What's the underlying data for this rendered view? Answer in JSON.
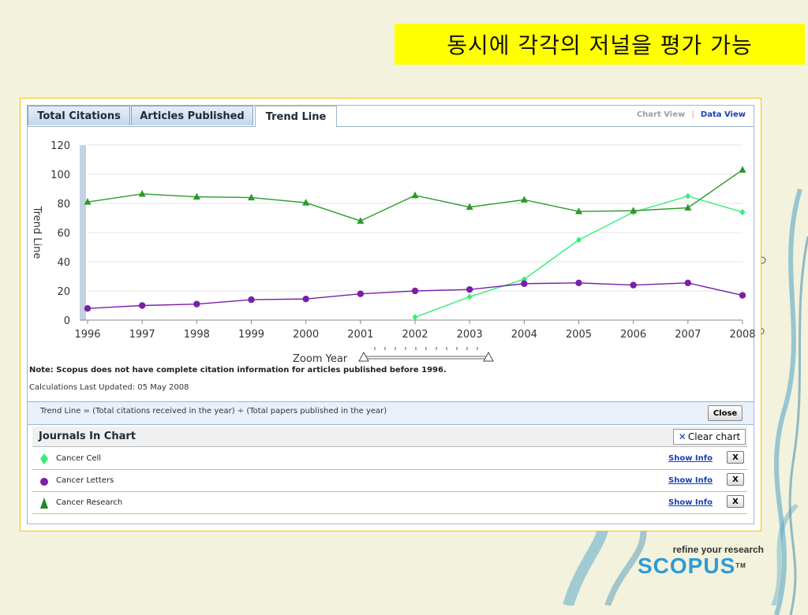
{
  "slide": {
    "title": "동시에 각각의 저널을 평가 가능"
  },
  "tabs": [
    {
      "label": "Total Citations",
      "active": false
    },
    {
      "label": "Articles Published",
      "active": false
    },
    {
      "label": "Trend Line",
      "active": true
    }
  ],
  "views": {
    "chart": "Chart View",
    "data": "Data View"
  },
  "chart_data": {
    "type": "line",
    "ylabel": "Trend Line",
    "xlabel": "",
    "x": [
      1996,
      1997,
      1998,
      1999,
      2000,
      2001,
      2002,
      2003,
      2004,
      2005,
      2006,
      2007,
      2008
    ],
    "ylim": [
      0,
      120
    ],
    "yticks": [
      0,
      20,
      40,
      60,
      80,
      100,
      120
    ],
    "grid": true,
    "series": [
      {
        "name": "Cancer Cell",
        "color": "#33ee77",
        "marker": "diamond",
        "values": [
          null,
          null,
          null,
          null,
          null,
          null,
          2,
          16,
          28,
          55,
          74,
          85,
          74
        ]
      },
      {
        "name": "Cancer Letters",
        "color": "#7a1fa8",
        "marker": "circle",
        "values": [
          8,
          10,
          11,
          14,
          14.5,
          18,
          20,
          21,
          25,
          25.5,
          24,
          25.5,
          17
        ]
      },
      {
        "name": "Cancer Research",
        "color": "#2a9a2a",
        "marker": "triangle",
        "values": [
          81,
          86.5,
          84.5,
          84,
          80.5,
          68,
          85.5,
          77.5,
          82.5,
          74.5,
          75,
          77,
          103
        ]
      }
    ]
  },
  "zoom": {
    "label": "Zoom Year"
  },
  "note": "Note: Scopus does not have complete citation information for articles published before 1996.",
  "updated": "Calculations Last Updated: 05 May 2008",
  "formula": {
    "text": "Trend Line = (Total citations received in the year) ÷ (Total papers published in the year)",
    "close": "Close"
  },
  "journals": {
    "title": "Journals In Chart",
    "clear": "Clear chart",
    "items": [
      {
        "name": "Cancer Cell",
        "show": "Show Info",
        "remove": "X",
        "color": "#33ee77",
        "marker": "diamond"
      },
      {
        "name": "Cancer Letters",
        "show": "Show Info",
        "remove": "X",
        "color": "#7a1fa8",
        "marker": "circle"
      },
      {
        "name": "Cancer Research",
        "show": "Show Info",
        "remove": "X",
        "color": "#2a9a2a",
        "marker": "triangle"
      }
    ]
  },
  "logo": {
    "tagline": "refine your research",
    "brand": "SCOPUS",
    "tm": "TM"
  }
}
